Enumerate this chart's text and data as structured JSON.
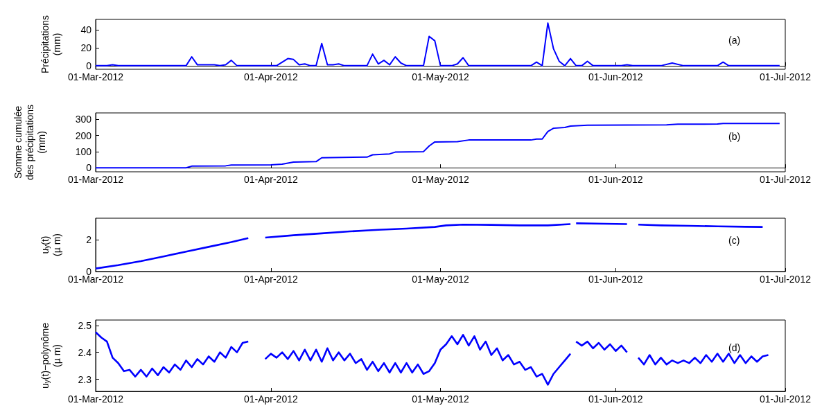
{
  "chart_data": [
    {
      "type": "line",
      "ylabel": "Précipitations\n(mm)",
      "annotations": [
        "(a)"
      ],
      "x": [
        "2012-03-01",
        "2012-03-03",
        "2012-03-04",
        "2012-03-05",
        "2012-03-17",
        "2012-03-18",
        "2012-03-19",
        "2012-03-22",
        "2012-03-23",
        "2012-03-24",
        "2012-03-25",
        "2012-03-26",
        "2012-04-02",
        "2012-04-04",
        "2012-04-05",
        "2012-04-06",
        "2012-04-07",
        "2012-04-08",
        "2012-04-09",
        "2012-04-10",
        "2012-04-11",
        "2012-04-12",
        "2012-04-13",
        "2012-04-14",
        "2012-04-18",
        "2012-04-19",
        "2012-04-20",
        "2012-04-21",
        "2012-04-22",
        "2012-04-23",
        "2012-04-24",
        "2012-04-25",
        "2012-04-28",
        "2012-04-29",
        "2012-04-30",
        "2012-05-01",
        "2012-05-03",
        "2012-05-04",
        "2012-05-05",
        "2012-05-06",
        "2012-05-17",
        "2012-05-18",
        "2012-05-19",
        "2012-05-20",
        "2012-05-21",
        "2012-05-22",
        "2012-05-23",
        "2012-05-24",
        "2012-05-25",
        "2012-05-26",
        "2012-05-27",
        "2012-05-28",
        "2012-06-02",
        "2012-06-03",
        "2012-06-04",
        "2012-06-09",
        "2012-06-11",
        "2012-06-13",
        "2012-06-19",
        "2012-06-20",
        "2012-06-21",
        "2012-06-30"
      ],
      "series": [
        {
          "color": "#0000ff",
          "values": [
            0,
            0,
            1,
            0,
            0,
            10,
            1,
            1,
            0,
            1,
            6,
            0,
            0,
            8,
            7,
            1,
            2,
            0,
            0,
            25,
            1,
            1,
            2,
            0,
            0,
            13,
            2,
            6,
            1,
            10,
            3,
            0,
            0,
            33,
            28,
            0,
            0,
            2,
            9,
            0,
            0,
            4,
            0,
            48,
            19,
            5,
            0,
            8,
            0,
            0,
            5,
            0,
            0,
            1,
            0,
            0,
            3,
            0,
            0,
            4,
            0,
            0
          ]
        }
      ],
      "xlim": [
        "2012-03-01",
        "2012-07-01"
      ],
      "xticks": [
        {
          "value": "2012-03-01",
          "label": "01-Mar-2012"
        },
        {
          "value": "2012-04-01",
          "label": "01-Apr-2012"
        },
        {
          "value": "2012-05-01",
          "label": "01-May-2012"
        },
        {
          "value": "2012-06-01",
          "label": "01-Jun-2012"
        },
        {
          "value": "2012-07-01",
          "label": "01-Jul-2012"
        }
      ],
      "ylim": [
        -4,
        52
      ],
      "yticks": [
        0,
        20,
        40
      ]
    },
    {
      "type": "line",
      "ylabel": "Somme cumulée\ndes précipitations\n(mm)",
      "annotations": [
        "(b)"
      ],
      "x": [
        "2012-03-01",
        "2012-03-17",
        "2012-03-18",
        "2012-03-24",
        "2012-03-25",
        "2012-04-01",
        "2012-04-03",
        "2012-04-05",
        "2012-04-09",
        "2012-04-10",
        "2012-04-18",
        "2012-04-19",
        "2012-04-22",
        "2012-04-23",
        "2012-04-28",
        "2012-04-29",
        "2012-04-30",
        "2012-05-04",
        "2012-05-06",
        "2012-05-17",
        "2012-05-18",
        "2012-05-19",
        "2012-05-20",
        "2012-05-21",
        "2012-05-23",
        "2012-05-24",
        "2012-05-27",
        "2012-06-10",
        "2012-06-12",
        "2012-06-19",
        "2012-06-20",
        "2012-06-30"
      ],
      "series": [
        {
          "color": "#0000ff",
          "values": [
            0,
            0,
            10,
            12,
            17,
            18,
            22,
            35,
            38,
            62,
            66,
            80,
            86,
            97,
            100,
            135,
            160,
            162,
            172,
            172,
            178,
            178,
            225,
            245,
            250,
            258,
            264,
            266,
            270,
            271,
            275,
            275
          ]
        }
      ],
      "xlim": [
        "2012-03-01",
        "2012-07-01"
      ],
      "xticks": [
        {
          "value": "2012-03-01",
          "label": "01-Mar-2012"
        },
        {
          "value": "2012-04-01",
          "label": "01-Apr-2012"
        },
        {
          "value": "2012-05-01",
          "label": "01-May-2012"
        },
        {
          "value": "2012-06-01",
          "label": "01-Jun-2012"
        },
        {
          "value": "2012-07-01",
          "label": "01-Jul-2012"
        }
      ],
      "ylim": [
        -25,
        340
      ],
      "yticks": [
        0,
        100,
        200,
        300
      ]
    },
    {
      "type": "line",
      "ylabel": "u$_{y}$(t)\n(µ m)",
      "annotations": [
        "(c)"
      ],
      "x": [
        "2012-03-01",
        "2012-03-05",
        "2012-03-09",
        "2012-03-13",
        "2012-03-17",
        "2012-03-21",
        "2012-03-25",
        "2012-03-28",
        "2012-03-29",
        "2012-03-31",
        "2012-04-05",
        "2012-04-10",
        "2012-04-15",
        "2012-04-20",
        "2012-04-25",
        "2012-04-30",
        "2012-05-02",
        "2012-05-05",
        "2012-05-10",
        "2012-05-15",
        "2012-05-20",
        "2012-05-24",
        "2012-05-24T18:00",
        "2012-05-25",
        "2012-05-30",
        "2012-06-03",
        "2012-06-04",
        "2012-06-05",
        "2012-06-09",
        "2012-06-14",
        "2012-06-19",
        "2012-06-24",
        "2012-06-27"
      ],
      "series": [
        {
          "color": "#0000ff",
          "values": [
            0.19,
            0.4,
            0.65,
            0.95,
            1.25,
            1.55,
            1.85,
            2.1,
            null,
            2.13,
            2.28,
            2.4,
            2.52,
            2.62,
            2.7,
            2.8,
            2.9,
            2.95,
            2.93,
            2.9,
            2.9,
            2.98,
            null,
            3.03,
            3.0,
            2.98,
            null,
            2.95,
            2.9,
            2.87,
            2.84,
            2.81,
            2.8
          ]
        }
      ],
      "xlim": [
        "2012-03-01",
        "2012-07-01"
      ],
      "xticks": [
        {
          "value": "2012-03-01",
          "label": "01-Mar-2012"
        },
        {
          "value": "2012-04-01",
          "label": "01-Apr-2012"
        },
        {
          "value": "2012-05-01",
          "label": "01-May-2012"
        },
        {
          "value": "2012-06-01",
          "label": "01-Jun-2012"
        },
        {
          "value": "2012-07-01",
          "label": "01-Jul-2012"
        }
      ],
      "ylim": [
        0,
        3.35
      ],
      "yticks": [
        0,
        2
      ]
    },
    {
      "type": "line",
      "ylabel": "u$_{y}$(t)−polynôme\n(µ m)",
      "annotations": [
        "(d)"
      ],
      "x": [
        "2012-03-01",
        "2012-03-02",
        "2012-03-03",
        "2012-03-04",
        "2012-03-05",
        "2012-03-06",
        "2012-03-07",
        "2012-03-08",
        "2012-03-09",
        "2012-03-10",
        "2012-03-11",
        "2012-03-12",
        "2012-03-13",
        "2012-03-14",
        "2012-03-15",
        "2012-03-16",
        "2012-03-17",
        "2012-03-18",
        "2012-03-19",
        "2012-03-20",
        "2012-03-21",
        "2012-03-22",
        "2012-03-23",
        "2012-03-24",
        "2012-03-25",
        "2012-03-26",
        "2012-03-27",
        "2012-03-28",
        "2012-03-29",
        "2012-03-31",
        "2012-04-01",
        "2012-04-02",
        "2012-04-03",
        "2012-04-04",
        "2012-04-05",
        "2012-04-06",
        "2012-04-07",
        "2012-04-08",
        "2012-04-09",
        "2012-04-10",
        "2012-04-11",
        "2012-04-12",
        "2012-04-13",
        "2012-04-14",
        "2012-04-15",
        "2012-04-16",
        "2012-04-17",
        "2012-04-18",
        "2012-04-19",
        "2012-04-20",
        "2012-04-21",
        "2012-04-22",
        "2012-04-23",
        "2012-04-24",
        "2012-04-25",
        "2012-04-26",
        "2012-04-27",
        "2012-04-28",
        "2012-04-29",
        "2012-04-30",
        "2012-05-01",
        "2012-05-02",
        "2012-05-03",
        "2012-05-04",
        "2012-05-05",
        "2012-05-06",
        "2012-05-07",
        "2012-05-08",
        "2012-05-09",
        "2012-05-10",
        "2012-05-11",
        "2012-05-12",
        "2012-05-13",
        "2012-05-14",
        "2012-05-15",
        "2012-05-16",
        "2012-05-17",
        "2012-05-18",
        "2012-05-19",
        "2012-05-20",
        "2012-05-21",
        "2012-05-22",
        "2012-05-23",
        "2012-05-24",
        "2012-05-24T18:00",
        "2012-05-25",
        "2012-05-26",
        "2012-05-27",
        "2012-05-28",
        "2012-05-29",
        "2012-05-30",
        "2012-05-31",
        "2012-06-01",
        "2012-06-02",
        "2012-06-03",
        "2012-06-04T18:00",
        "2012-06-05",
        "2012-06-06",
        "2012-06-07",
        "2012-06-08",
        "2012-06-09",
        "2012-06-10",
        "2012-06-11",
        "2012-06-12",
        "2012-06-13",
        "2012-06-14",
        "2012-06-15",
        "2012-06-16",
        "2012-06-17",
        "2012-06-18",
        "2012-06-19",
        "2012-06-20",
        "2012-06-21",
        "2012-06-22",
        "2012-06-23",
        "2012-06-24",
        "2012-06-25",
        "2012-06-26",
        "2012-06-27",
        "2012-06-28"
      ],
      "series": [
        {
          "color": "#0000ff",
          "values": [
            2.475,
            2.455,
            2.44,
            2.38,
            2.36,
            2.33,
            2.335,
            2.31,
            2.335,
            2.31,
            2.34,
            2.315,
            2.345,
            2.325,
            2.355,
            2.335,
            2.37,
            2.345,
            2.375,
            2.355,
            2.385,
            2.365,
            2.4,
            2.38,
            2.42,
            2.4,
            2.435,
            2.44,
            null,
            2.375,
            2.395,
            2.38,
            2.4,
            2.375,
            2.405,
            2.37,
            2.41,
            2.37,
            2.41,
            2.365,
            2.415,
            2.37,
            2.4,
            2.37,
            2.395,
            2.36,
            2.375,
            2.335,
            2.365,
            2.33,
            2.36,
            2.325,
            2.36,
            2.325,
            2.36,
            2.325,
            2.355,
            2.32,
            2.33,
            2.36,
            2.41,
            2.43,
            2.46,
            2.43,
            2.465,
            2.425,
            2.46,
            2.41,
            2.44,
            2.39,
            2.415,
            2.37,
            2.39,
            2.355,
            2.365,
            2.335,
            2.345,
            2.31,
            2.32,
            2.28,
            2.32,
            2.345,
            2.37,
            2.395,
            null,
            2.44,
            2.425,
            2.44,
            2.415,
            2.435,
            2.41,
            2.43,
            2.405,
            2.425,
            2.4,
            null,
            2.38,
            2.355,
            2.39,
            2.355,
            2.38,
            2.355,
            2.37,
            2.36,
            2.37,
            2.36,
            2.38,
            2.36,
            2.39,
            2.365,
            2.395,
            2.365,
            2.395,
            2.36,
            2.39,
            2.36,
            2.385,
            2.365,
            2.385,
            2.39
          ]
        }
      ],
      "xlim": [
        "2012-03-01",
        "2012-07-01"
      ],
      "xticks": [
        {
          "value": "2012-03-01",
          "label": "01-Mar-2012"
        },
        {
          "value": "2012-04-01",
          "label": "01-Apr-2012"
        },
        {
          "value": "2012-05-01",
          "label": "01-May-2012"
        },
        {
          "value": "2012-06-01",
          "label": "01-Jun-2012"
        },
        {
          "value": "2012-07-01",
          "label": "01-Jul-2012"
        }
      ],
      "ylim": [
        2.255,
        2.52
      ],
      "yticks": [
        2.3,
        2.4,
        2.5
      ]
    }
  ]
}
